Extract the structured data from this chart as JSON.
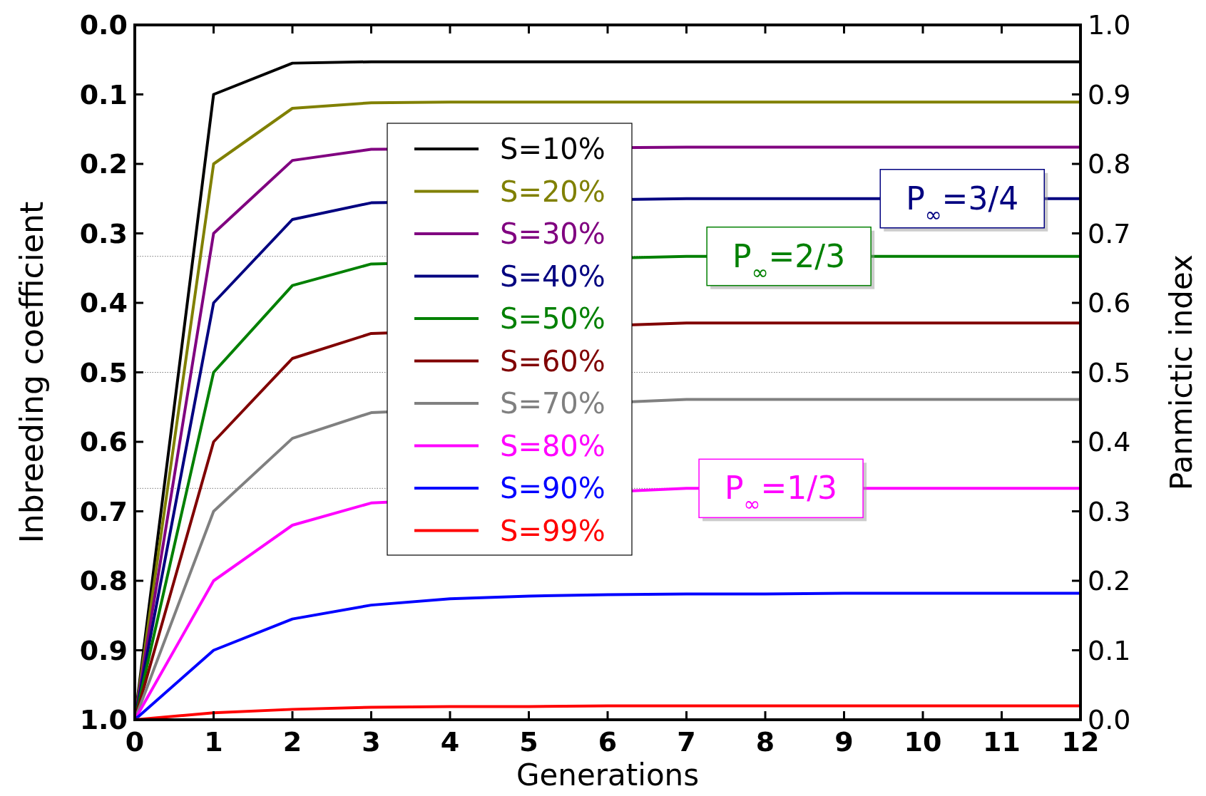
{
  "chart_data": {
    "type": "line",
    "xlabel": "Generations",
    "ylabel": "Inbreeding coefficient",
    "y2label": "Panmictic index",
    "x": [
      0,
      1,
      2,
      3,
      4,
      5,
      6,
      7,
      8,
      9,
      10,
      11,
      12
    ],
    "series": [
      {
        "name": "S=10%",
        "color": "#000000",
        "values": [
          1,
          0.1,
          0.055,
          0.053,
          0.053,
          0.053,
          0.053,
          0.053,
          0.053,
          0.053,
          0.053,
          0.053,
          0.053
        ]
      },
      {
        "name": "S=20%",
        "color": "#808000",
        "values": [
          1,
          0.2,
          0.12,
          0.112,
          0.111,
          0.111,
          0.111,
          0.111,
          0.111,
          0.111,
          0.111,
          0.111,
          0.111
        ]
      },
      {
        "name": "S=30%",
        "color": "#800080",
        "values": [
          1,
          0.3,
          0.195,
          0.179,
          null,
          null,
          null,
          0.176,
          0.176,
          0.176,
          0.176,
          0.176,
          0.176
        ]
      },
      {
        "name": "S=40%",
        "color": "#000080",
        "values": [
          1,
          0.4,
          0.28,
          0.256,
          null,
          null,
          null,
          0.25,
          0.25,
          0.25,
          null,
          null,
          0.25
        ]
      },
      {
        "name": "S=50%",
        "color": "#008000",
        "values": [
          1,
          0.5,
          0.375,
          0.344,
          null,
          null,
          null,
          0.333,
          null,
          null,
          0.333,
          0.333,
          0.333
        ]
      },
      {
        "name": "S=60%",
        "color": "#800000",
        "values": [
          1,
          0.6,
          0.48,
          0.444,
          null,
          null,
          null,
          0.429,
          0.429,
          0.429,
          0.429,
          0.429,
          0.429
        ]
      },
      {
        "name": "S=70%",
        "color": "#808080",
        "values": [
          1,
          0.7,
          0.595,
          0.558,
          null,
          null,
          null,
          0.539,
          0.539,
          0.539,
          0.539,
          0.539,
          0.539
        ]
      },
      {
        "name": "S=80%",
        "color": "#ff00ff",
        "values": [
          1,
          0.8,
          0.72,
          0.688,
          null,
          null,
          null,
          0.667,
          null,
          null,
          0.667,
          0.667,
          0.667
        ]
      },
      {
        "name": "S=90%",
        "color": "#0000ff",
        "values": [
          1,
          0.9,
          0.855,
          0.835,
          0.826,
          0.822,
          0.82,
          0.819,
          0.819,
          0.818,
          0.818,
          0.818,
          0.818
        ]
      },
      {
        "name": "S=99%",
        "color": "#ff0000",
        "values": [
          1,
          0.99,
          0.985,
          0.982,
          0.981,
          0.981,
          0.98,
          0.98,
          0.98,
          0.98,
          0.98,
          0.98,
          0.98
        ]
      }
    ],
    "xlim": [
      0,
      12
    ],
    "xticks": [
      0,
      1,
      2,
      3,
      4,
      5,
      6,
      7,
      8,
      9,
      10,
      11,
      12
    ],
    "ylim": [
      1,
      0
    ],
    "yticks": [
      {
        "value": 0,
        "label": "0.0"
      },
      0.1,
      0.2,
      0.3,
      0.4,
      0.5,
      0.6,
      0.7,
      0.8,
      0.9,
      {
        "value": 1,
        "label": "1.0"
      }
    ],
    "y2lim": [
      0,
      1
    ],
    "y2ticks": [
      {
        "value": 0,
        "label": "0.0"
      },
      0.1,
      0.2,
      0.3,
      0.4,
      0.5,
      0.6,
      0.7,
      0.8,
      0.9,
      {
        "value": 1,
        "label": "1.0"
      }
    ],
    "ref_lines": [
      {
        "axis": "y",
        "value": 0.333,
        "color": "#555555",
        "line_style": "dotted"
      },
      {
        "axis": "y",
        "value": 0.5,
        "color": "#555555",
        "line_style": "dotted"
      },
      {
        "axis": "y",
        "value": 0.667,
        "color": "#555555",
        "line_style": "dotted"
      }
    ],
    "annotations": [
      {
        "text": "P$_{∞}$=3/4",
        "x": 10.5,
        "y": 0.25
      },
      {
        "text": "P$_{∞}$=2/3",
        "x": 8.3,
        "y": 0.333
      },
      {
        "text": "P$_{∞}$=1/3",
        "x": 8.2,
        "y": 0.667
      }
    ],
    "legend": "top left",
    "grid": false,
    "marker": "none",
    "line_style": "solid"
  }
}
